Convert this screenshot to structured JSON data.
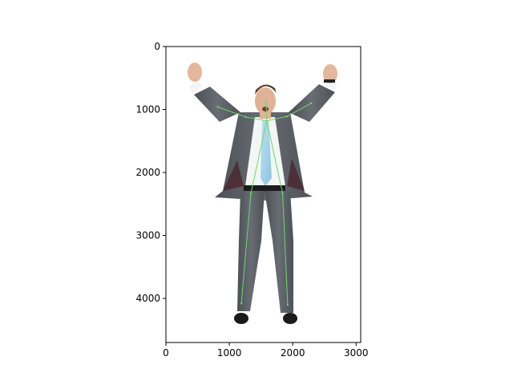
{
  "figure": {
    "background": "#ffffff"
  },
  "chart_data": {
    "type": "image",
    "title": "",
    "xlabel": "",
    "ylabel": "",
    "xlim": [
      0,
      3072
    ],
    "ylim": [
      4700,
      0
    ],
    "y_inverted": true,
    "xticks": [
      0,
      1000,
      2000,
      3000
    ],
    "yticks": [
      0,
      1000,
      2000,
      3000,
      4000
    ],
    "xtick_labels": [
      "0",
      "1000",
      "2000",
      "3000"
    ],
    "ytick_labels": [
      "0",
      "1000",
      "2000",
      "3000",
      "4000"
    ],
    "grid": false,
    "image_content": "photo of a man in a grey suit with both fists raised, light blue tie, black shoes, white background",
    "pose_overlay": {
      "color": "#6fd66f",
      "keypoints": [
        {
          "name": "nose",
          "x": 1580,
          "y": 860
        },
        {
          "name": "neck",
          "x": 1590,
          "y": 1180
        },
        {
          "name": "right_shoulder",
          "x": 1260,
          "y": 1120
        },
        {
          "name": "left_shoulder",
          "x": 1910,
          "y": 1110
        },
        {
          "name": "right_elbow",
          "x": 820,
          "y": 960
        },
        {
          "name": "left_elbow",
          "x": 2290,
          "y": 900
        },
        {
          "name": "right_hip",
          "x": 1340,
          "y": 2330
        },
        {
          "name": "left_hip",
          "x": 1840,
          "y": 2330
        },
        {
          "name": "right_ankle",
          "x": 1190,
          "y": 4080
        },
        {
          "name": "left_ankle",
          "x": 1920,
          "y": 4100
        }
      ],
      "edges": [
        [
          "neck",
          "right_shoulder"
        ],
        [
          "neck",
          "left_shoulder"
        ],
        [
          "right_shoulder",
          "right_elbow"
        ],
        [
          "left_shoulder",
          "left_elbow"
        ],
        [
          "neck",
          "right_hip"
        ],
        [
          "neck",
          "left_hip"
        ],
        [
          "right_hip",
          "right_ankle"
        ],
        [
          "left_hip",
          "left_ankle"
        ],
        [
          "nose",
          "neck"
        ]
      ]
    }
  }
}
